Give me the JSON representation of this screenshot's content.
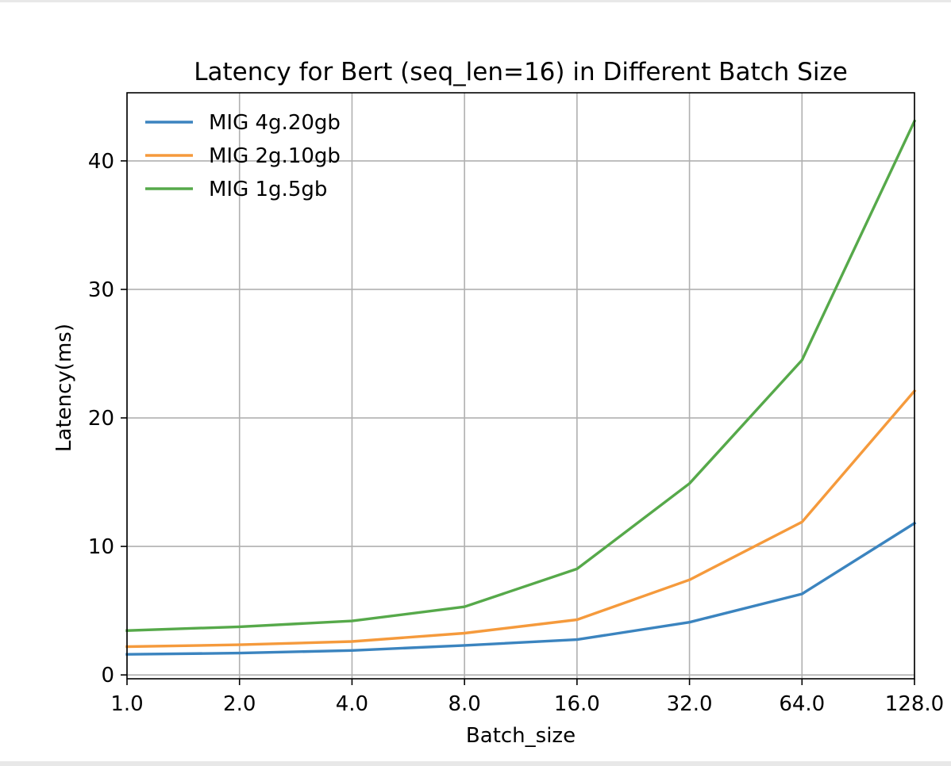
{
  "chart_data": {
    "type": "line",
    "title": "Latency for Bert (seq_len=16) in Different Batch Size",
    "xlabel": "Batch_size",
    "ylabel": "Latency(ms)",
    "x_scale": "log2",
    "x": [
      1,
      2,
      4,
      8,
      16,
      32,
      64,
      128
    ],
    "x_tick_labels": [
      "1.0",
      "2.0",
      "4.0",
      "8.0",
      "16.0",
      "32.0",
      "64.0",
      "128.0"
    ],
    "xlim": [
      1,
      128
    ],
    "ylim": [
      -0.3,
      45.3
    ],
    "y_ticks": [
      0,
      10,
      20,
      30,
      40
    ],
    "y_tick_labels": [
      "0",
      "10",
      "20",
      "30",
      "40"
    ],
    "grid": true,
    "legend_position": "top-left",
    "series": [
      {
        "name": "MIG 4g.20gb",
        "color": "#3b84bf",
        "values": [
          1.6,
          1.7,
          1.9,
          2.3,
          2.75,
          4.1,
          6.3,
          11.8
        ]
      },
      {
        "name": "MIG 2g.10gb",
        "color": "#f59a3c",
        "values": [
          2.2,
          2.35,
          2.6,
          3.25,
          4.3,
          7.4,
          11.9,
          22.1
        ]
      },
      {
        "name": "MIG 1g.5gb",
        "color": "#56a94a",
        "values": [
          3.45,
          3.75,
          4.2,
          5.3,
          8.25,
          14.9,
          24.5,
          43.1
        ]
      }
    ]
  }
}
